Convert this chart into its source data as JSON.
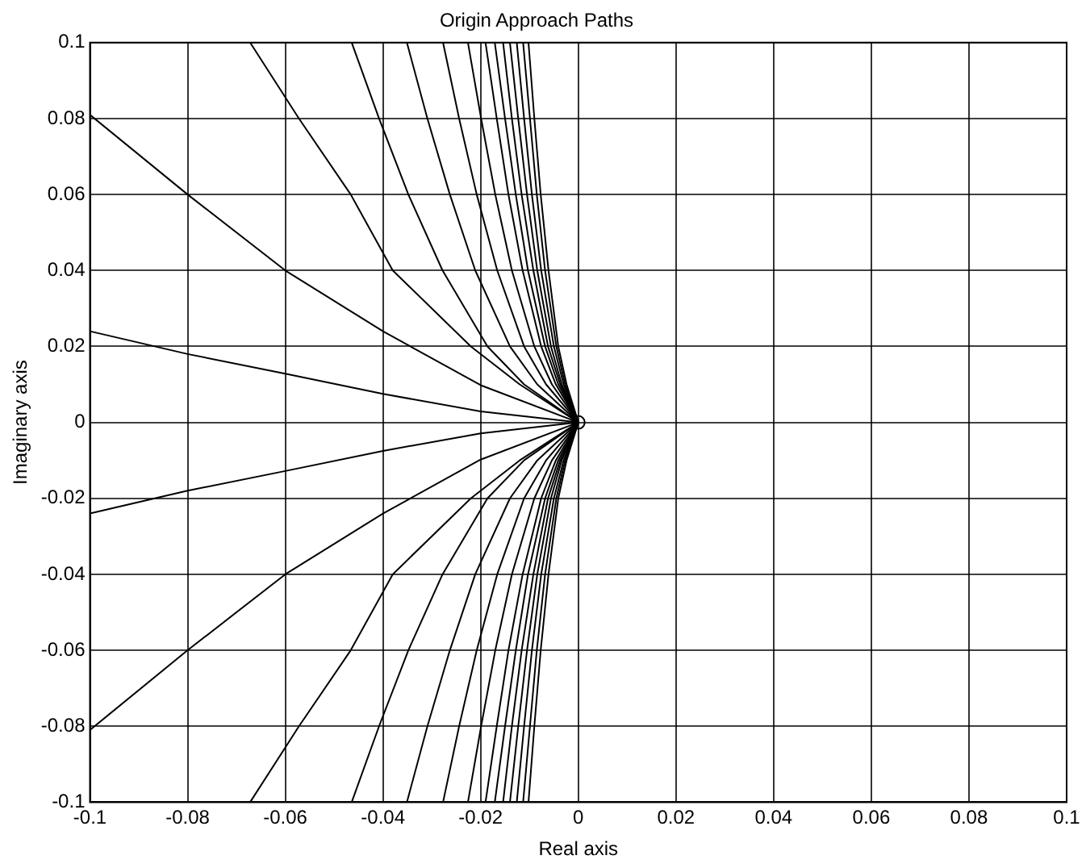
{
  "chart_data": {
    "type": "line",
    "title": "Origin Approach Paths",
    "xlabel": "Real axis",
    "ylabel": "Imaginary axis",
    "xlim": [
      -0.1,
      0.1
    ],
    "ylim": [
      -0.1,
      0.1
    ],
    "xticks": [
      -0.1,
      -0.08,
      -0.06,
      -0.04,
      -0.02,
      0,
      0.02,
      0.04,
      0.06,
      0.08,
      0.1
    ],
    "yticks": [
      -0.1,
      -0.08,
      -0.06,
      -0.04,
      -0.02,
      0,
      0.02,
      0.04,
      0.06,
      0.08,
      0.1
    ],
    "grid": true,
    "legend": false,
    "marker": "none",
    "line_style": "solid",
    "series": [
      {
        "color": "#000000",
        "x": [
          -0.1,
          -0.08,
          -0.06,
          -0.04,
          -0.02,
          0,
          -0.02,
          -0.04,
          -0.06,
          -0.08,
          -0.1
        ],
        "values": [
          0.024,
          0.018,
          0.0128,
          0.0075,
          0.0029,
          0,
          -0.0029,
          -0.0075,
          -0.0128,
          -0.018,
          -0.024
        ]
      },
      {
        "color": "#000000",
        "x": [
          -0.1,
          -0.08,
          -0.06,
          -0.04,
          -0.02,
          0,
          -0.02,
          -0.04,
          -0.06,
          -0.08,
          -0.1
        ],
        "values": [
          0.081,
          0.06,
          0.04,
          0.024,
          0.0098,
          0,
          -0.0098,
          -0.024,
          -0.04,
          -0.06,
          -0.081
        ]
      },
      {
        "color": "#000000",
        "x": [
          -0.0672,
          -0.0572,
          -0.0466,
          -0.038,
          -0.022,
          -0.012,
          0,
          -0.012,
          -0.022,
          -0.038,
          -0.0466,
          -0.0572,
          -0.0672
        ],
        "values": [
          0.1,
          0.08,
          0.06,
          0.04,
          0.02,
          0.01,
          0,
          -0.01,
          -0.02,
          -0.04,
          -0.06,
          -0.08,
          -0.1
        ]
      },
      {
        "color": "#000000",
        "x": [
          -0.0464,
          -0.0408,
          -0.0348,
          -0.0278,
          -0.0186,
          -0.0111,
          0,
          -0.0111,
          -0.0186,
          -0.0278,
          -0.0348,
          -0.0408,
          -0.0464
        ],
        "values": [
          0.1,
          0.08,
          0.06,
          0.04,
          0.02,
          0.01,
          0,
          -0.01,
          -0.02,
          -0.04,
          -0.06,
          -0.08,
          -0.1
        ]
      },
      {
        "color": "#000000",
        "x": [
          -0.0351,
          -0.0309,
          -0.0263,
          -0.0211,
          -0.014,
          -0.0084,
          0,
          -0.0084,
          -0.014,
          -0.0211,
          -0.0263,
          -0.0309,
          -0.0351
        ],
        "values": [
          0.1,
          0.08,
          0.06,
          0.04,
          0.02,
          0.01,
          0,
          -0.01,
          -0.02,
          -0.04,
          -0.06,
          -0.08,
          -0.1
        ]
      },
      {
        "color": "#000000",
        "x": [
          -0.0277,
          -0.0244,
          -0.0208,
          -0.0166,
          -0.0111,
          -0.0066,
          0,
          -0.0066,
          -0.0111,
          -0.0166,
          -0.0208,
          -0.0244,
          -0.0277
        ],
        "values": [
          0.1,
          0.08,
          0.06,
          0.04,
          0.02,
          0.01,
          0,
          -0.01,
          -0.02,
          -0.04,
          -0.06,
          -0.08,
          -0.1
        ]
      },
      {
        "color": "#000000",
        "x": [
          -0.0226,
          -0.0199,
          -0.017,
          -0.0136,
          -0.009,
          -0.0054,
          0,
          -0.0054,
          -0.009,
          -0.0136,
          -0.017,
          -0.0199,
          -0.0226
        ],
        "values": [
          0.1,
          0.08,
          0.06,
          0.04,
          0.02,
          0.01,
          0,
          -0.01,
          -0.02,
          -0.04,
          -0.06,
          -0.08,
          -0.1
        ]
      },
      {
        "color": "#000000",
        "x": [
          -0.019,
          -0.0167,
          -0.0143,
          -0.0114,
          -0.0076,
          -0.0046,
          0,
          -0.0046,
          -0.0076,
          -0.0114,
          -0.0143,
          -0.0167,
          -0.019
        ],
        "values": [
          0.1,
          0.08,
          0.06,
          0.04,
          0.02,
          0.01,
          0,
          -0.01,
          -0.02,
          -0.04,
          -0.06,
          -0.08,
          -0.1
        ]
      },
      {
        "color": "#000000",
        "x": [
          -0.0171,
          -0.015,
          -0.0128,
          -0.0103,
          -0.0068,
          -0.0041,
          0,
          -0.0041,
          -0.0068,
          -0.0103,
          -0.0128,
          -0.015,
          -0.0171
        ],
        "values": [
          0.1,
          0.08,
          0.06,
          0.04,
          0.02,
          0.01,
          0,
          -0.01,
          -0.02,
          -0.04,
          -0.06,
          -0.08,
          -0.1
        ]
      },
      {
        "color": "#000000",
        "x": [
          -0.0154,
          -0.0136,
          -0.0116,
          -0.0092,
          -0.0062,
          -0.0037,
          0,
          -0.0037,
          -0.0062,
          -0.0092,
          -0.0116,
          -0.0136,
          -0.0154
        ],
        "values": [
          0.1,
          0.08,
          0.06,
          0.04,
          0.02,
          0.01,
          0,
          -0.01,
          -0.02,
          -0.04,
          -0.06,
          -0.08,
          -0.1
        ]
      },
      {
        "color": "#000000",
        "x": [
          -0.014,
          -0.0123,
          -0.0105,
          -0.0084,
          -0.0056,
          -0.0034,
          0,
          -0.0034,
          -0.0056,
          -0.0084,
          -0.0105,
          -0.0123,
          -0.014
        ],
        "values": [
          0.1,
          0.08,
          0.06,
          0.04,
          0.02,
          0.01,
          0,
          -0.01,
          -0.02,
          -0.04,
          -0.06,
          -0.08,
          -0.1
        ]
      },
      {
        "color": "#000000",
        "x": [
          -0.0126,
          -0.0111,
          -0.0095,
          -0.0076,
          -0.005,
          -0.003,
          0,
          -0.003,
          -0.005,
          -0.0076,
          -0.0095,
          -0.0111,
          -0.0126
        ],
        "values": [
          0.1,
          0.08,
          0.06,
          0.04,
          0.02,
          0.01,
          0,
          -0.01,
          -0.02,
          -0.04,
          -0.06,
          -0.08,
          -0.1
        ]
      },
      {
        "color": "#000000",
        "x": [
          -0.0113,
          -0.0099,
          -0.0085,
          -0.0068,
          -0.0045,
          -0.0027,
          0,
          -0.0027,
          -0.0045,
          -0.0068,
          -0.0085,
          -0.0099,
          -0.0113
        ],
        "values": [
          0.1,
          0.08,
          0.06,
          0.04,
          0.02,
          0.01,
          0,
          -0.01,
          -0.02,
          -0.04,
          -0.06,
          -0.08,
          -0.1
        ]
      },
      {
        "color": "#000000",
        "x": [
          -0.0102,
          -0.009,
          -0.0077,
          -0.0061,
          -0.0041,
          -0.0024,
          0,
          -0.0024,
          -0.0041,
          -0.0061,
          -0.0077,
          -0.009,
          -0.0102
        ],
        "values": [
          0.1,
          0.08,
          0.06,
          0.04,
          0.02,
          0.01,
          0,
          -0.01,
          -0.02,
          -0.04,
          -0.06,
          -0.08,
          -0.1
        ]
      },
      {
        "type": "scatter",
        "marker": "circle",
        "color": "#000000",
        "x": [
          0
        ],
        "values": [
          0
        ]
      }
    ]
  }
}
